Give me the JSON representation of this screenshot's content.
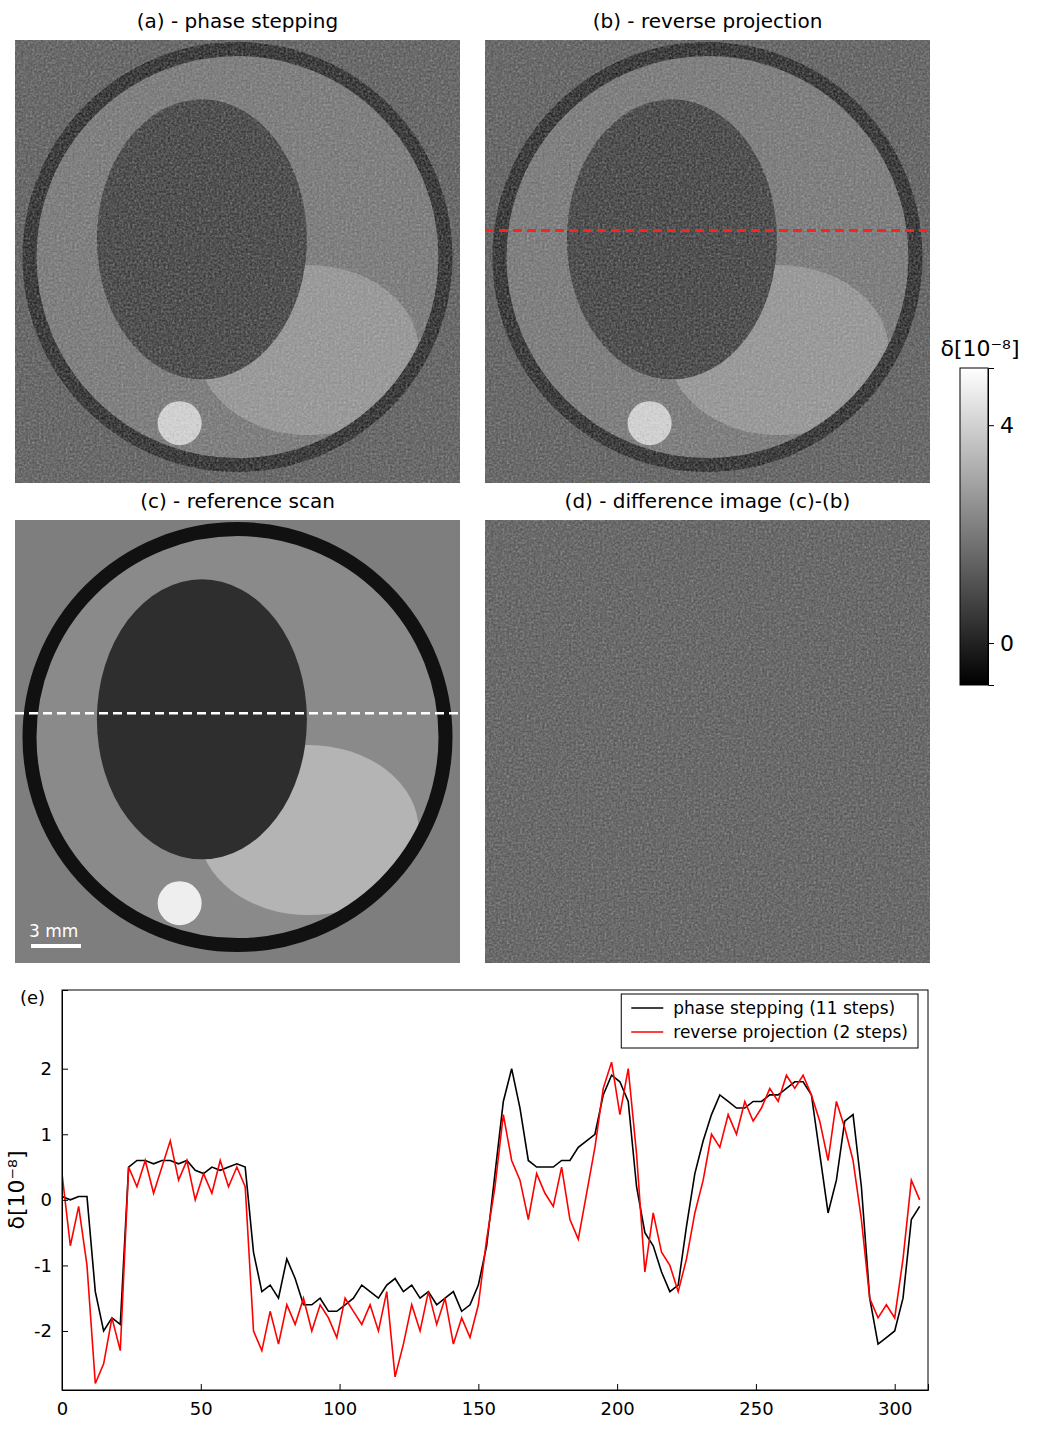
{
  "chart_data": [
    {
      "type": "image",
      "title": "(a) - phase stepping"
    },
    {
      "type": "image",
      "title": "(b) - reverse projection"
    },
    {
      "type": "image",
      "title": "(c) - reference scan",
      "annotations": [
        "3 mm"
      ]
    },
    {
      "type": "image",
      "title": "(d) - difference image (c)-(b)"
    },
    {
      "type": "colorbar",
      "ylabel": "δ[10⁻⁸]",
      "ylim": [
        -0.77,
        5.05
      ],
      "yticks": [
        0,
        4
      ]
    },
    {
      "type": "line",
      "title": "(e)",
      "ylabel": "δ[10⁻⁸]",
      "xlim": [
        0,
        312
      ],
      "ylim": [
        -2.9,
        3.2
      ],
      "xticks": [
        0,
        50,
        100,
        150,
        200,
        250,
        300
      ],
      "yticks": [
        -2,
        -1,
        0,
        1,
        2
      ],
      "legend": "upper right",
      "x": [
        0,
        3,
        6,
        9,
        12,
        15,
        18,
        21,
        24,
        27,
        30,
        33,
        36,
        39,
        42,
        45,
        48,
        51,
        54,
        57,
        60,
        63,
        66,
        69,
        72,
        75,
        78,
        81,
        84,
        87,
        90,
        93,
        96,
        99,
        102,
        105,
        108,
        111,
        114,
        117,
        120,
        123,
        126,
        129,
        132,
        135,
        138,
        141,
        144,
        147,
        150,
        153,
        156,
        159,
        162,
        165,
        168,
        171,
        174,
        177,
        180,
        183,
        186,
        189,
        192,
        195,
        198,
        201,
        204,
        207,
        210,
        213,
        216,
        219,
        222,
        225,
        228,
        231,
        234,
        237,
        240,
        243,
        246,
        249,
        252,
        255,
        258,
        261,
        264,
        267,
        270,
        273,
        276,
        279,
        282,
        285,
        288,
        291,
        294,
        297,
        300,
        303,
        306,
        309
      ],
      "series": [
        {
          "name": "phase stepping (11 steps)",
          "color": "#000000",
          "values": [
            0.05,
            0,
            0.05,
            0.05,
            -1.4,
            -2.0,
            -1.8,
            -1.9,
            0.5,
            0.6,
            0.6,
            0.55,
            0.6,
            0.6,
            0.55,
            0.6,
            0.45,
            0.4,
            0.5,
            0.45,
            0.5,
            0.55,
            0.5,
            -0.8,
            -1.4,
            -1.3,
            -1.5,
            -0.9,
            -1.2,
            -1.6,
            -1.6,
            -1.5,
            -1.7,
            -1.7,
            -1.6,
            -1.5,
            -1.3,
            -1.4,
            -1.5,
            -1.3,
            -1.2,
            -1.4,
            -1.3,
            -1.5,
            -1.4,
            -1.6,
            -1.5,
            -1.4,
            -1.7,
            -1.6,
            -1.3,
            -0.7,
            0.4,
            1.5,
            2.0,
            1.4,
            0.6,
            0.5,
            0.5,
            0.5,
            0.6,
            0.6,
            0.8,
            0.9,
            1.0,
            1.6,
            1.9,
            1.8,
            1.5,
            0.2,
            -0.5,
            -0.7,
            -1.1,
            -1.4,
            -1.3,
            -0.4,
            0.4,
            0.9,
            1.3,
            1.6,
            1.5,
            1.4,
            1.4,
            1.5,
            1.5,
            1.6,
            1.6,
            1.7,
            1.8,
            1.8,
            1.6,
            0.7,
            -0.2,
            0.3,
            1.2,
            1.3,
            0.2,
            -1.5,
            -2.2,
            -2.1,
            -2.0,
            -1.5,
            -0.3,
            -0.1
          ]
        },
        {
          "name": "reverse projection (2 steps)",
          "color": "#ff0000",
          "values": [
            0.4,
            -0.7,
            -0.1,
            -1.0,
            -2.8,
            -2.5,
            -1.8,
            -2.3,
            0.5,
            0.2,
            0.6,
            0.1,
            0.5,
            0.9,
            0.3,
            0.6,
            0,
            0.4,
            0.1,
            0.6,
            0.2,
            0.5,
            0.2,
            -2.0,
            -2.3,
            -1.7,
            -2.2,
            -1.6,
            -1.9,
            -1.5,
            -2.0,
            -1.6,
            -1.8,
            -2.1,
            -1.5,
            -1.7,
            -1.9,
            -1.6,
            -2.0,
            -1.4,
            -2.7,
            -2.2,
            -1.6,
            -2.0,
            -1.4,
            -1.9,
            -1.5,
            -2.2,
            -1.8,
            -2.1,
            -1.6,
            -0.6,
            0.2,
            1.3,
            0.6,
            0.3,
            -0.3,
            0.4,
            0.1,
            -0.1,
            0.5,
            -0.3,
            -0.6,
            0.1,
            0.8,
            1.7,
            2.1,
            1.3,
            2.0,
            0.7,
            -1.1,
            -0.2,
            -0.8,
            -1.0,
            -1.4,
            -0.9,
            -0.2,
            0.3,
            1.0,
            0.8,
            1.3,
            1.0,
            1.5,
            1.2,
            1.4,
            1.7,
            1.5,
            1.9,
            1.7,
            1.9,
            1.6,
            1.2,
            0.6,
            1.5,
            1.1,
            0.6,
            -0.3,
            -1.5,
            -1.8,
            -1.6,
            -1.8,
            -0.9,
            0.3,
            0
          ]
        }
      ]
    }
  ]
}
